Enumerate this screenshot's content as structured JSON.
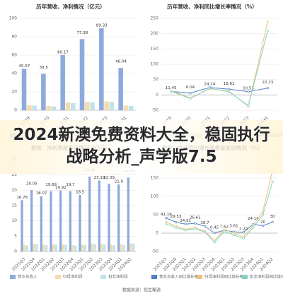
{
  "overlay_title": "2024新澳免费资料大全，稳固执行战略分析_声学版7.5",
  "source": "数据来源：恒生聚源",
  "chart_data": [
    {
      "type": "bar",
      "title": "历年营收、净利情况（亿元）",
      "categories": [
        "2019",
        "2020",
        "2021",
        "2022",
        "2023",
        "2024H1"
      ],
      "ylim": [
        0,
        100
      ],
      "yticks": [
        0,
        20,
        40,
        60,
        80,
        100
      ],
      "grid": true,
      "series": [
        {
          "name": "营业总收入",
          "color": "#8eaadb",
          "values": [
            45.07,
            39.5,
            60.17,
            77.38,
            89.33,
            46.04
          ]
        },
        {
          "name": "归母净利润",
          "color": "#f5dcae",
          "values": [
            5.5,
            4.6,
            8.6,
            9.1,
            9.6,
            5.1
          ]
        },
        {
          "name": "扣非净利润",
          "color": "#bfe3ea",
          "values": [
            5.0,
            4.1,
            7.7,
            8.5,
            8.9,
            4.7
          ]
        }
      ],
      "label_series": 0
    },
    {
      "type": "line",
      "title": "历年营收、净利同比增长率情况（%）",
      "categories": [
        "2019",
        "2020",
        "2021",
        "2022",
        "2023",
        "2024H1"
      ],
      "ylim": [
        -50,
        250
      ],
      "yticks": [
        -50,
        0,
        50,
        100,
        150,
        200,
        250
      ],
      "grid": true,
      "series": [
        {
          "name": "营业总收入同比增长率",
          "color": "#4f7fc0",
          "values": [
            11.45,
            6.04,
            24.24,
            18.61,
            10.53,
            22.23
          ]
        },
        {
          "name": "归母净利润同比增长率",
          "color": "#f0c27a",
          "values": [
            14,
            -10,
            20,
            12,
            -38,
            240
          ]
        },
        {
          "name": "扣非净利润同比增长率",
          "color": "#7fd3c0",
          "values": [
            12,
            -12,
            22,
            10,
            -35,
            210
          ]
        }
      ],
      "label_series": 0
    },
    {
      "type": "bar",
      "title": "营收、净利季度变动情况（亿元）",
      "categories": [
        "2021Q3",
        "2021Q4",
        "2022Q1",
        "2022Q2",
        "2022Q3",
        "2022Q4",
        "2023Q1",
        "2023Q2",
        "2023Q3",
        "2023Q4",
        "2024Q1",
        "2024Q2"
      ],
      "ylim": [
        0,
        30
      ],
      "yticks": [
        0,
        5,
        10,
        15,
        20,
        25,
        30
      ],
      "grid": true,
      "series": [
        {
          "name": "营业总收入",
          "color": "#8eaadb",
          "values": [
            16.78,
            20.05,
            18.07,
            19.69,
            19.92,
            19.7,
            18.5,
            24.48,
            23.19,
            22.09,
            21.9,
            24.15
          ]
        },
        {
          "name": "归母净利润",
          "color": "#f5dcae",
          "values": [
            2.2,
            2.5,
            2.3,
            2.4,
            2.4,
            2.1,
            2.3,
            2.6,
            2.5,
            2.2,
            2.4,
            2.7
          ]
        },
        {
          "name": "扣非净利润",
          "color": "#bfe3ea",
          "values": [
            2.0,
            2.3,
            2.1,
            2.2,
            2.2,
            1.9,
            2.1,
            2.4,
            2.3,
            2.0,
            2.2,
            2.5
          ]
        }
      ],
      "label_series": 0
    },
    {
      "type": "line",
      "title": "营收、净利同比增长率季度变动情况（%）",
      "categories": [
        "2021Q3",
        "2021Q4",
        "2022Q1",
        "2022Q2",
        "2022Q3",
        "2022Q4",
        "2023Q1",
        "2023Q2",
        "2023Q3",
        "2023Q4",
        "2024Q1",
        "2024Q2"
      ],
      "ylim": [
        -50,
        200
      ],
      "yticks": [
        -50,
        0,
        50,
        100,
        150,
        200
      ],
      "grid": true,
      "series": [
        {
          "name": "营业总收入同比增长率",
          "color": "#4f7fc0",
          "values": [
            41.16,
            29.53,
            24.51,
            26.61,
            18.7,
            0.45,
            7.62,
            3.61,
            2.22,
            24.14,
            20,
            30
          ]
        },
        {
          "name": "归母净利润同比增长率",
          "color": "#f0c27a",
          "values": [
            30,
            20,
            10,
            15,
            5,
            -20,
            10,
            0,
            -10,
            20,
            60,
            170
          ]
        },
        {
          "name": "扣非净利润同比增长率",
          "color": "#7fd3c0",
          "values": [
            25,
            15,
            8,
            12,
            3,
            -25,
            5,
            -5,
            -15,
            15,
            50,
            140
          ]
        }
      ],
      "label_series": 0
    }
  ]
}
